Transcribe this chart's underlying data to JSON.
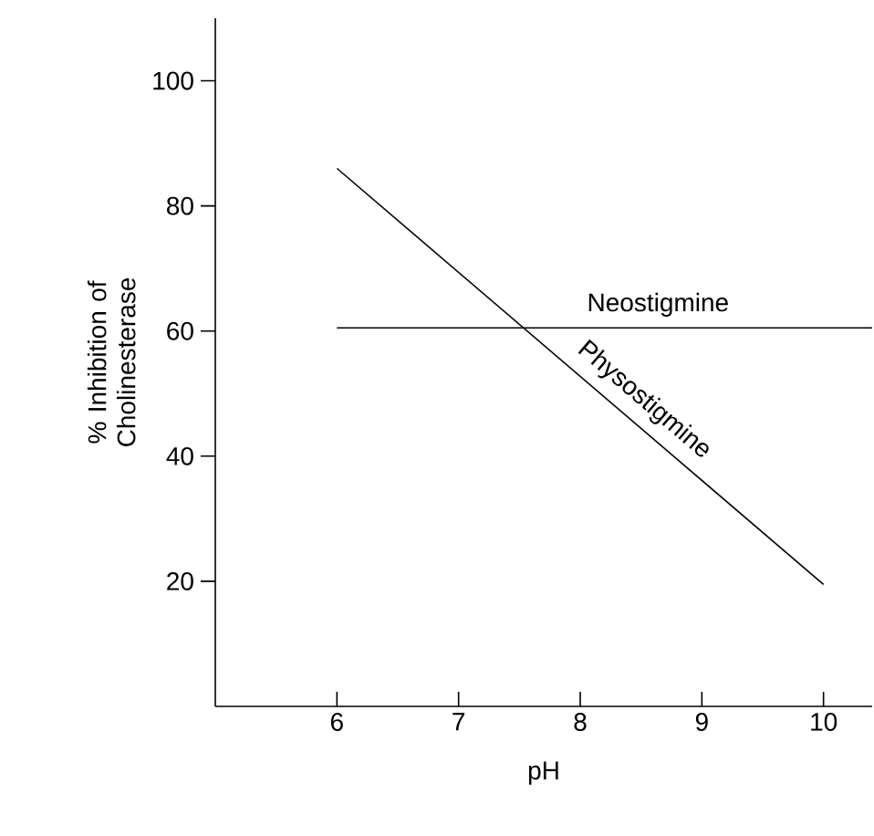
{
  "chart_data": {
    "type": "line",
    "xlabel": "pH",
    "ylabel": "% Inhibition of Cholinesterase",
    "xlim": [
      5,
      10.4
    ],
    "ylim": [
      0,
      110
    ],
    "xticks": [
      6,
      7,
      8,
      9,
      10
    ],
    "yticks": [
      20,
      40,
      60,
      80,
      100
    ],
    "grid": false,
    "legend": false,
    "marker": "none",
    "line_style": "solid",
    "series": [
      {
        "name": "Neostigmine",
        "color": "#000000",
        "x": [
          6,
          10.4
        ],
        "values": [
          60.5,
          60.5
        ]
      },
      {
        "name": "Physostigmine",
        "color": "#000000",
        "x": [
          6,
          10
        ],
        "values": [
          86,
          19.5
        ]
      }
    ]
  }
}
